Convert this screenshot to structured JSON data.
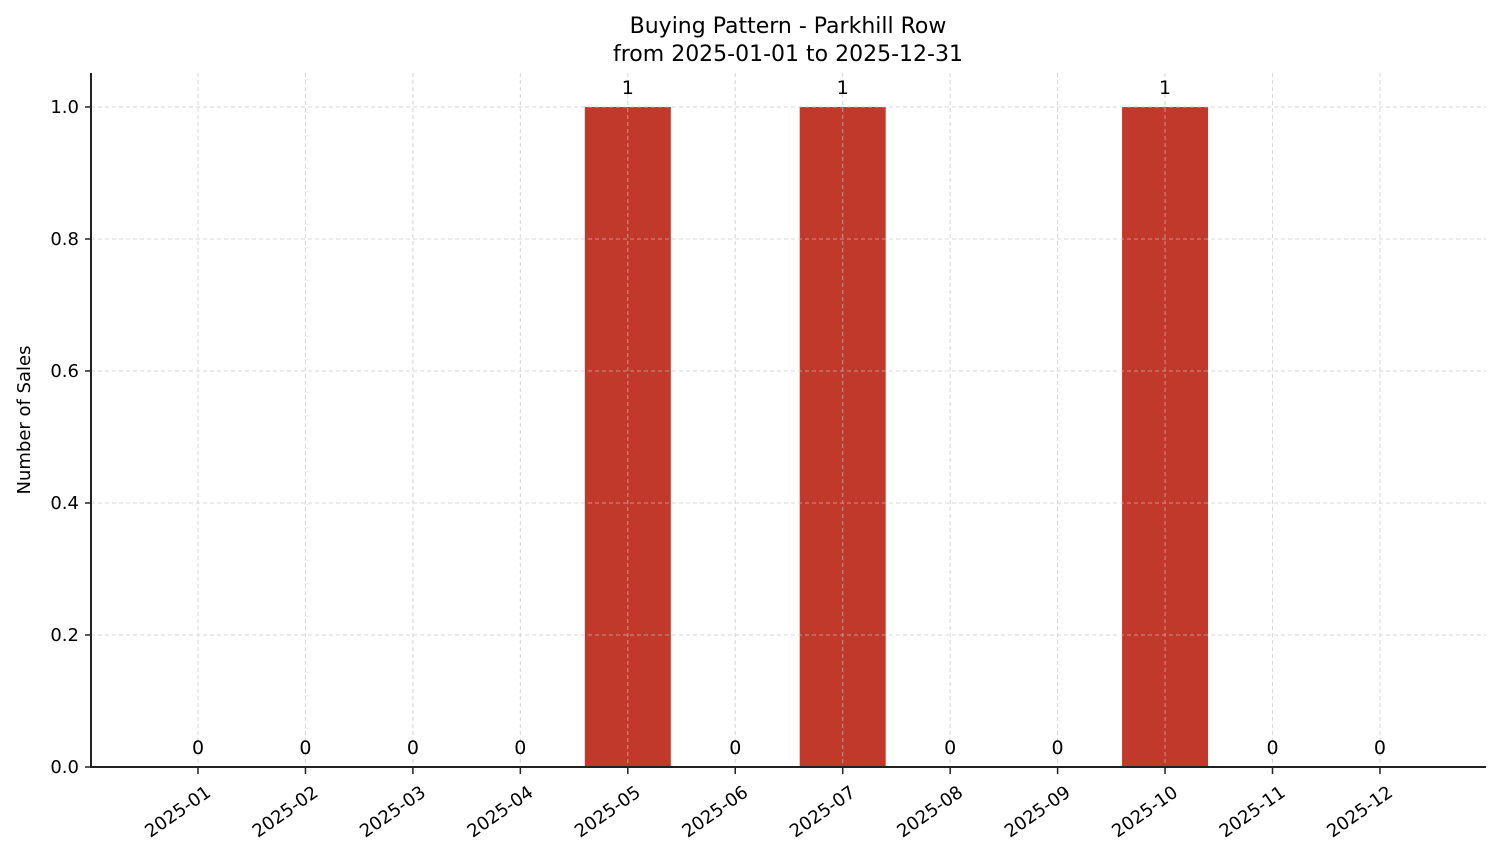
{
  "chart_data": {
    "type": "bar",
    "title": "Buying Pattern - Parkhill Row",
    "subtitle": "from 2025-01-01 to 2025-12-31",
    "xlabel": "",
    "ylabel": "Number of Sales",
    "categories": [
      "2025-01",
      "2025-02",
      "2025-03",
      "2025-04",
      "2025-05",
      "2025-06",
      "2025-07",
      "2025-08",
      "2025-09",
      "2025-10",
      "2025-11",
      "2025-12"
    ],
    "values": [
      0,
      0,
      0,
      0,
      1,
      0,
      1,
      0,
      0,
      1,
      0,
      0
    ],
    "data_labels": [
      "0",
      "0",
      "0",
      "0",
      "1",
      "0",
      "1",
      "0",
      "0",
      "1",
      "0",
      "0"
    ],
    "yticks": [
      0.0,
      0.2,
      0.4,
      0.6,
      0.8,
      1.0
    ],
    "ytick_labels": [
      "0.0",
      "0.2",
      "0.4",
      "0.6",
      "0.8",
      "1.0"
    ],
    "ylim": [
      0,
      1.05
    ],
    "grid": true,
    "legend": null,
    "x_tick_rotation": 35,
    "colors": {
      "bar": "#c0392b",
      "grid": "#d9d9d9",
      "axis": "#222222"
    }
  }
}
